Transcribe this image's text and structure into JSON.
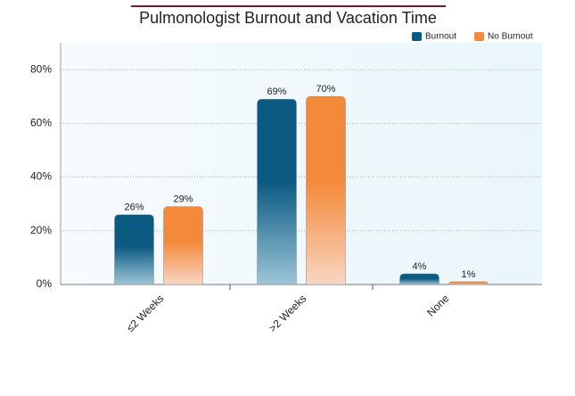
{
  "chart_data": {
    "type": "bar",
    "title": "Pulmonologist Burnout and Vacation Time",
    "categories": [
      "≤2 Weeks",
      ">2 Weeks",
      "None"
    ],
    "series": [
      {
        "name": "Burnout",
        "color": "#0b5a82",
        "values": [
          26,
          69,
          4
        ],
        "value_labels": [
          "26%",
          "69%",
          "4%"
        ]
      },
      {
        "name": "No Burnout",
        "color": "#f5893a",
        "values": [
          29,
          70,
          1
        ],
        "value_labels": [
          "29%",
          "70%",
          "1%"
        ]
      }
    ],
    "ylim": [
      0,
      90
    ],
    "yticks": [
      {
        "value": 0,
        "label": "0%"
      },
      {
        "value": 20,
        "label": "20%"
      },
      {
        "value": 40,
        "label": "40%"
      },
      {
        "value": 60,
        "label": "60%"
      },
      {
        "value": 80,
        "label": "80%"
      }
    ],
    "grid": true,
    "legend": "top-right"
  }
}
